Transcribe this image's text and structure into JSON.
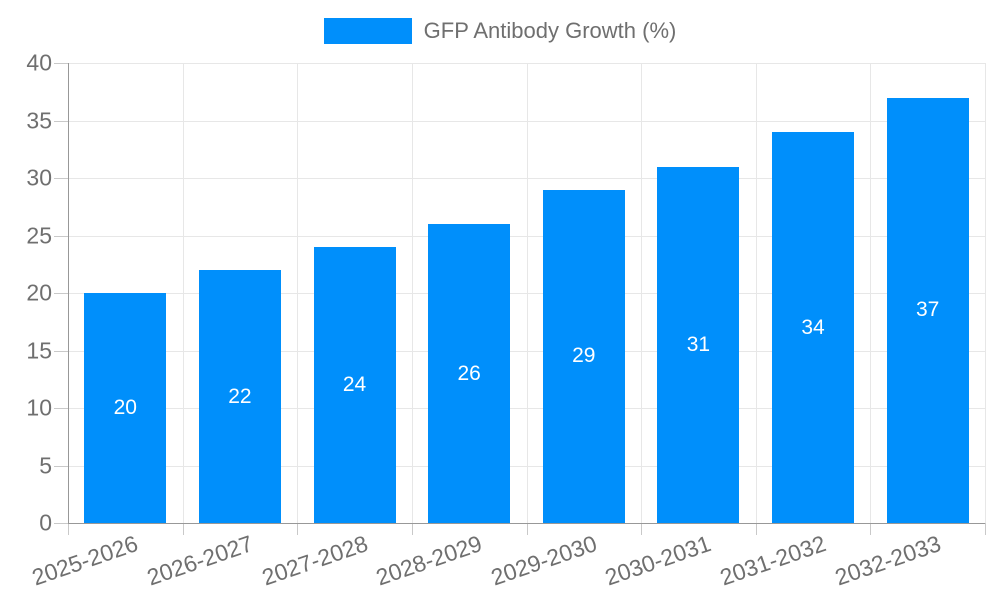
{
  "chart_data": {
    "type": "bar",
    "title": "GFP Antibody Growth (%)",
    "legend": {
      "position": "top",
      "label": "GFP Antibody Growth (%)"
    },
    "categories": [
      "2025-2026",
      "2026-2027",
      "2027-2028",
      "2028-2029",
      "2029-2030",
      "2030-2031",
      "2031-2032",
      "2032-2033"
    ],
    "values": [
      20,
      22,
      24,
      26,
      29,
      31,
      34,
      37
    ],
    "xlabel": "",
    "ylabel": "",
    "ylim": [
      0,
      40
    ],
    "yticks": [
      0,
      5,
      10,
      15,
      20,
      25,
      30,
      35,
      40
    ],
    "grid": true,
    "x_label_rotation_deg": -19,
    "colors": {
      "bar": "#008FFB",
      "grid": "#e7e7e7",
      "axis": "#989898",
      "tick": "#c9c9c9",
      "axis_text": "#6f6f6f",
      "data_label": "#ffffff"
    }
  }
}
